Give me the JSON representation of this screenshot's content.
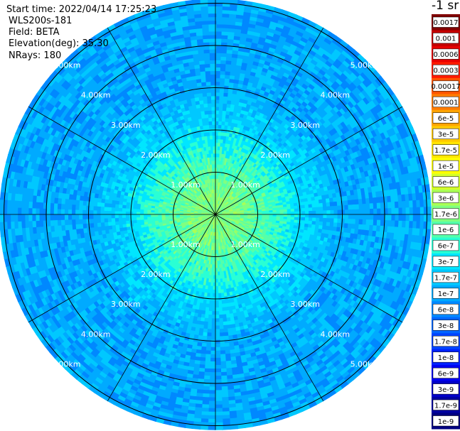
{
  "header": {
    "start_time": "Start time: 2022/04/14 17:25:23",
    "instrument": "WLS200s-181",
    "field": "Field: BETA",
    "elevation": "Elevation(deg): 35.30",
    "nrays": "NRays: 180"
  },
  "colorbar": {
    "unit_label": "-1 sr",
    "labels": [
      "0.0017",
      "0.001",
      "0.0006",
      "0.0003",
      "0.00017",
      "0.0001",
      "6e-5",
      "3e-5",
      "1.7e-5",
      "1e-5",
      "6e-6",
      "3e-6",
      "1.7e-6",
      "1e-6",
      "6e-7",
      "3e-7",
      "1.7e-7",
      "1e-7",
      "6e-8",
      "3e-8",
      "1.7e-8",
      "1e-8",
      "6e-9",
      "3e-9",
      "1.7e-9",
      "1e-9"
    ],
    "colors": [
      "#800000",
      "#c40000",
      "#e60000",
      "#ff1a00",
      "#ff5500",
      "#ff7a00",
      "#ffa500",
      "#ffc800",
      "#ffe600",
      "#ffff00",
      "#d4ff2a",
      "#aaff55",
      "#80ff80",
      "#55ffaa",
      "#2affd4",
      "#00e6ff",
      "#00c8ff",
      "#00aaff",
      "#0088ff",
      "#0066ff",
      "#0044ff",
      "#0022ff",
      "#0000f0",
      "#0000c8",
      "#0000a0",
      "#000080"
    ]
  },
  "chart_data": {
    "type": "heatmap",
    "projection": "polar-ppi",
    "field": "BETA",
    "elevation_deg": 35.3,
    "n_rays": 180,
    "range_rings_km": [
      1,
      2,
      3,
      4,
      5
    ],
    "ring_labels": [
      "1.00km",
      "2.00km",
      "3.00km",
      "4.00km",
      "5.00km"
    ],
    "max_range_km": 5.1,
    "spoke_angles_deg": [
      0,
      30,
      60,
      90,
      120,
      150,
      180,
      210,
      240,
      270,
      300,
      330
    ],
    "label_azimuths_deg": [
      45,
      135,
      225,
      315
    ],
    "log_scale": true,
    "value_range": [
      1e-09,
      0.0017
    ],
    "radial_profile": {
      "range_km": [
        0.0,
        0.5,
        1.0,
        1.5,
        2.0,
        2.5,
        3.0,
        4.0,
        5.0,
        5.1
      ],
      "beta": [
        1.7e-06,
        1.7e-06,
        1e-06,
        6e-07,
        2.5e-07,
        1.7e-07,
        1.1e-07,
        1e-07,
        1e-07,
        1e-07
      ]
    }
  }
}
